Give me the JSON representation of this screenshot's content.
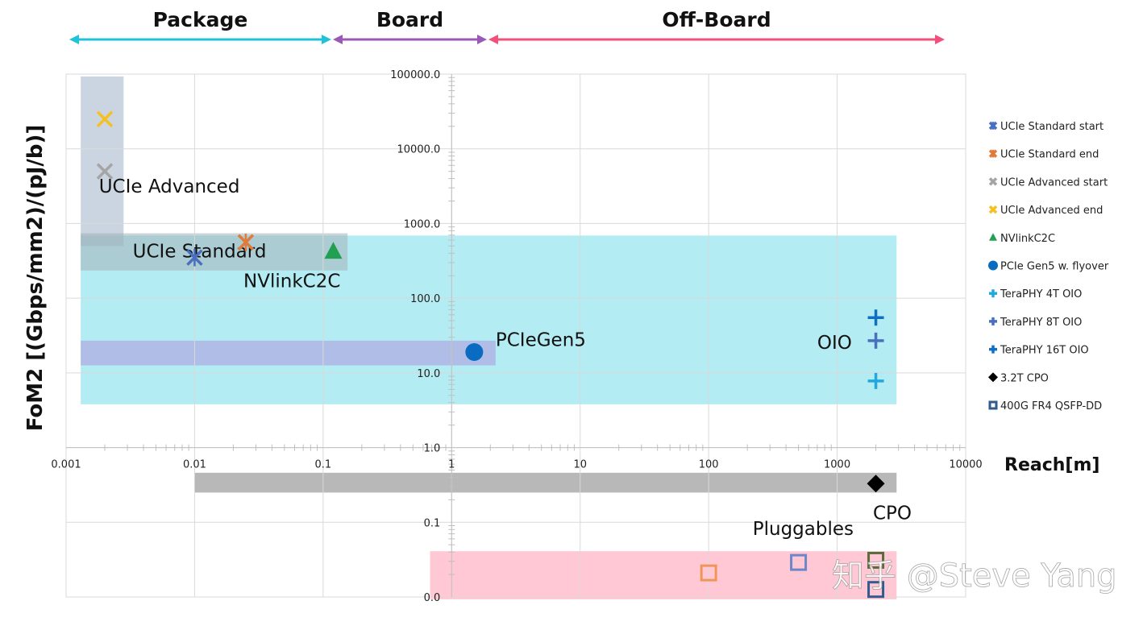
{
  "chart_data": {
    "type": "scatter",
    "title": "",
    "xlabel": "Reach[m]",
    "ylabel": "FoM2 [(Gbps/mm2)/(pJ/b)]",
    "x_scale": "log",
    "y_scale": "log",
    "xlim": [
      0.001,
      10000
    ],
    "ylim": [
      0.01,
      100000
    ],
    "grid": true,
    "legend_position": "right",
    "x_ticks": [
      {
        "v": 0.001,
        "label": "0.001"
      },
      {
        "v": 0.01,
        "label": "0.01"
      },
      {
        "v": 0.1,
        "label": "0.1"
      },
      {
        "v": 1,
        "label": "1"
      },
      {
        "v": 10,
        "label": "10"
      },
      {
        "v": 100,
        "label": "100"
      },
      {
        "v": 1000,
        "label": "1000"
      },
      {
        "v": 10000,
        "label": "10000"
      }
    ],
    "y_ticks": [
      {
        "v": 100000,
        "label": "100000.0"
      },
      {
        "v": 10000,
        "label": "10000.0"
      },
      {
        "v": 1000,
        "label": "1000.0"
      },
      {
        "v": 100,
        "label": "100.0"
      },
      {
        "v": 10,
        "label": "10.0"
      },
      {
        "v": 1,
        "label": "1.0"
      },
      {
        "v": 0.1,
        "label": "0.1"
      },
      {
        "v": 0.01,
        "label": "0.0"
      }
    ],
    "regions": [
      {
        "top_label": "Package",
        "x": [
          0.001,
          0.1
        ],
        "color": "#1fc3d8"
      },
      {
        "top_label": "Board",
        "x": [
          0.1,
          1.6
        ],
        "color": "#9b59b6"
      },
      {
        "top_label": "Off-Board",
        "x": [
          1.6,
          5000
        ],
        "color": "#f0507a"
      }
    ],
    "bands": [
      {
        "x": [
          0.0013,
          2900
        ],
        "y": [
          3.8,
          690
        ],
        "color": "#b3ecf2"
      },
      {
        "x": [
          0.0013,
          0.0028
        ],
        "y": [
          500,
          93000
        ],
        "color": "#9fb3c8",
        "opacity": 0.55
      },
      {
        "x": [
          0.0013,
          0.155
        ],
        "y": [
          235,
          740
        ],
        "color": "#a3b3b8",
        "opacity": 0.55
      },
      {
        "x": [
          0.0013,
          2.2
        ],
        "y": [
          12.6,
          27
        ],
        "color": "#b0bde6"
      },
      {
        "x": [
          0.01,
          2900
        ],
        "y": [
          0.25,
          0.46
        ],
        "color": "#b8b8b8"
      },
      {
        "x": [
          0.68,
          2900
        ],
        "y": [
          0.0093,
          0.041
        ],
        "color": "#ffc8d4"
      }
    ],
    "annotations": [
      {
        "text": "UCIe Advanced",
        "x": 0.0018,
        "y": 2600
      },
      {
        "text": "UCIe Standard",
        "x": 0.0033,
        "y": 350,
        "dy": -1.4
      },
      {
        "text": "NVlinkC2C",
        "x": 0.024,
        "y": 140
      },
      {
        "text": "PCIeGen5",
        "x": 2.2,
        "y": 23
      },
      {
        "text": "OIO",
        "x": 700,
        "y": 21
      },
      {
        "text": "CPO",
        "x": 1900,
        "y": 0.11
      },
      {
        "text": "Pluggables",
        "x": 220,
        "y": 0.068
      }
    ],
    "series": [
      {
        "name": "UCIe Standard start",
        "marker": "asterisk",
        "color": "#4a6fbf",
        "points": [
          [
            0.01,
            350
          ]
        ]
      },
      {
        "name": "UCIe Standard end",
        "marker": "asterisk",
        "color": "#e07b3c",
        "points": [
          [
            0.025,
            560
          ]
        ]
      },
      {
        "name": "UCIe Advanced start",
        "marker": "x",
        "color": "#a5a5a5",
        "points": [
          [
            0.002,
            5000
          ]
        ]
      },
      {
        "name": "UCIe Advanced end",
        "marker": "x",
        "color": "#f5c020",
        "points": [
          [
            0.002,
            25000
          ]
        ]
      },
      {
        "name": "NVlinkC2C",
        "marker": "triangle",
        "color": "#20a050",
        "points": [
          [
            0.12,
            420
          ]
        ]
      },
      {
        "name": "PCIe Gen5 w. flyover",
        "marker": "circle",
        "color": "#0a6cc0",
        "points": [
          [
            1.5,
            19
          ]
        ]
      },
      {
        "name": "TeraPHY 4T OIO",
        "marker": "plus",
        "color": "#22a8e0",
        "points": [
          [
            2000,
            7.8
          ]
        ]
      },
      {
        "name": "TeraPHY 8T OIO",
        "marker": "plus",
        "color": "#4a6fbf",
        "points": [
          [
            2000,
            27
          ]
        ]
      },
      {
        "name": "TeraPHY 16T OIO",
        "marker": "plus",
        "color": "#1070c0",
        "points": [
          [
            2000,
            55
          ]
        ]
      },
      {
        "name": "3.2T CPO",
        "marker": "diamond",
        "color": "#000000",
        "points": [
          [
            2000,
            0.33
          ]
        ]
      },
      {
        "name": "400G FR4 QSFP-DD",
        "marker": "square",
        "color": "#2f5b8f",
        "points": [
          [
            100,
            0.021
          ],
          [
            500,
            0.029
          ],
          [
            2000,
            0.031
          ],
          [
            2000,
            0.0126
          ]
        ],
        "point_colors": [
          "#f0955a",
          "#6c86c8",
          "#5a6a3a",
          "#2f5b8f"
        ]
      }
    ]
  },
  "watermark": "知乎 @Steve Yang"
}
